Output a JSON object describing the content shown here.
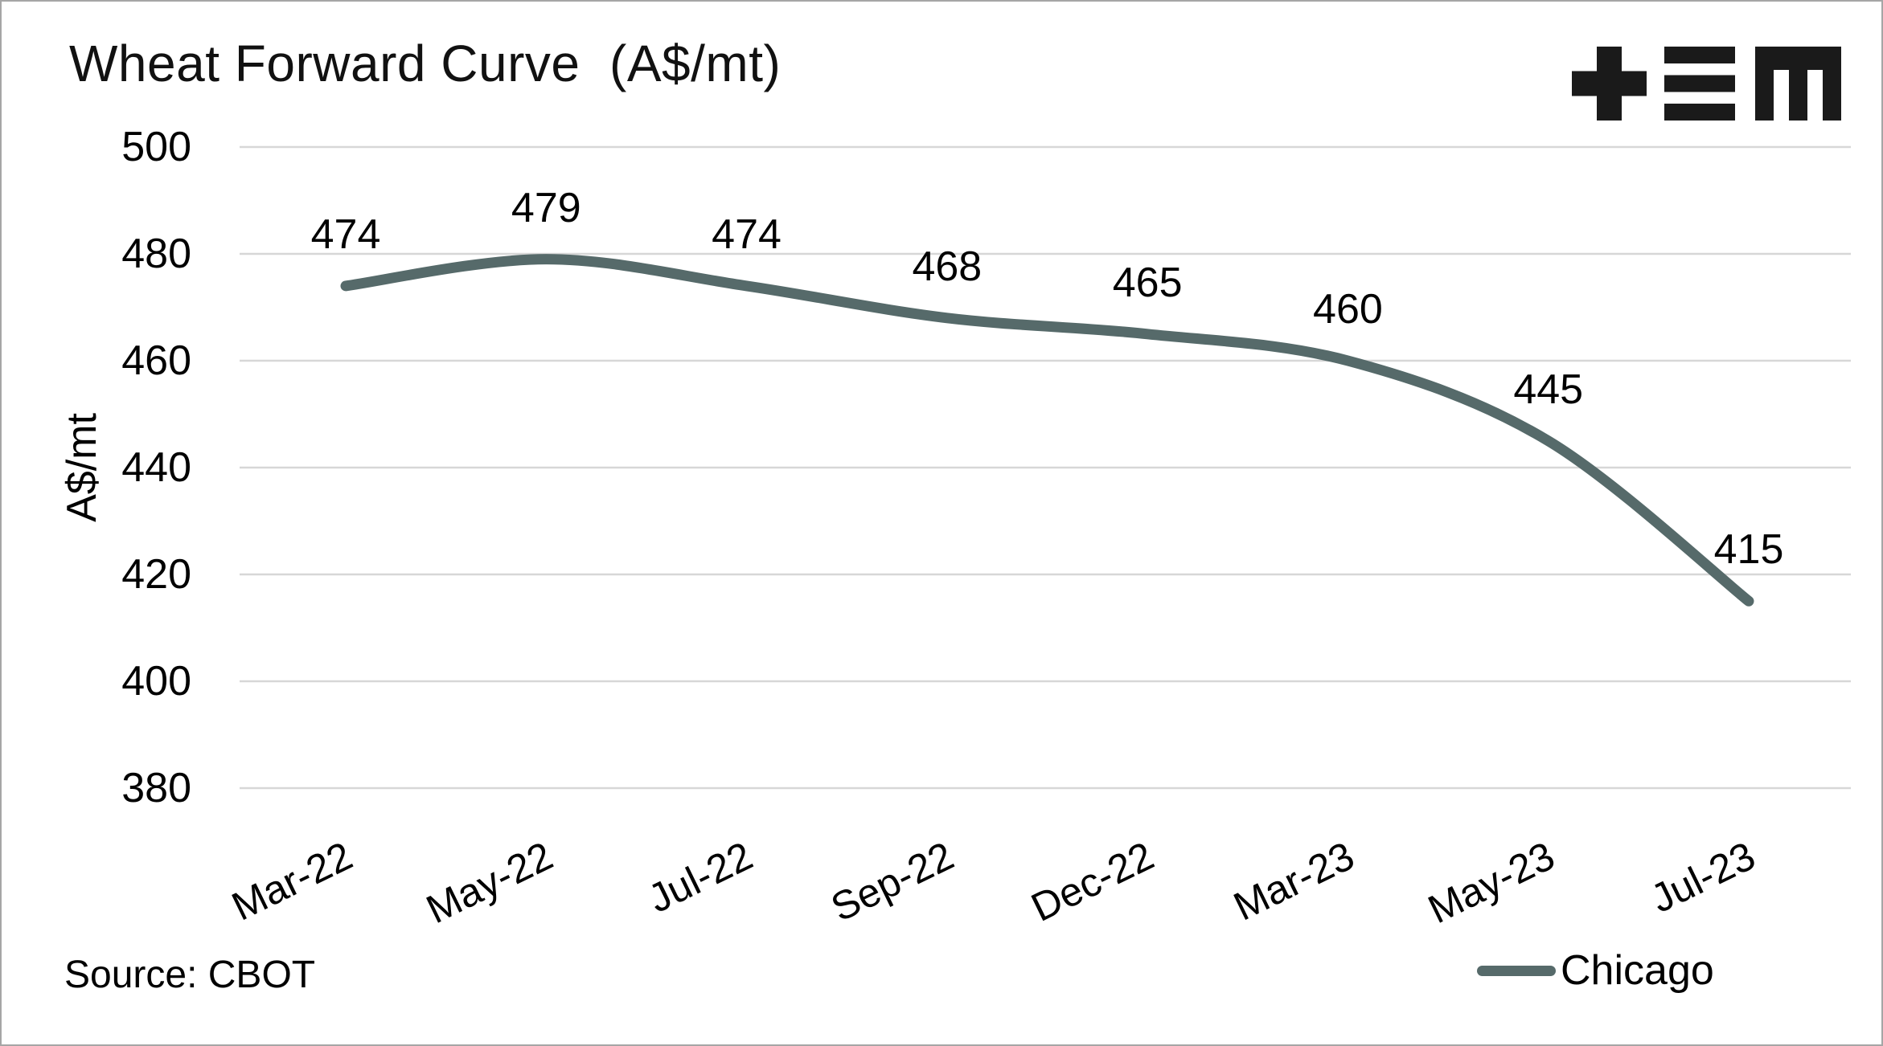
{
  "header": {
    "title": "Wheat Forward Curve  (A$/mt)"
  },
  "chart_data": {
    "type": "line",
    "title": "Wheat Forward Curve (A$/mt)",
    "categories": [
      "Mar-22",
      "May-22",
      "Jul-22",
      "Sep-22",
      "Dec-22",
      "Mar-23",
      "May-23",
      "Jul-23"
    ],
    "series": [
      {
        "name": "Chicago",
        "color": "#566a6a",
        "values": [
          474,
          479,
          474,
          468,
          465,
          460,
          445,
          415
        ]
      }
    ],
    "xlabel": "",
    "ylabel": "A$/mt",
    "ylim": [
      380,
      500
    ],
    "yticks": [
      500,
      480,
      460,
      440,
      420,
      400,
      380
    ],
    "grid": "horizontal-only",
    "smooth": true,
    "data_labels": "above",
    "legend_position": "bottom-right"
  },
  "footer": {
    "source": "Source: CBOT",
    "legend_label": "Chicago"
  },
  "logo": {
    "name": "plus-triplebar-m-logo",
    "color": "#1a1a1a"
  },
  "colors": {
    "line": "#566a6a",
    "grid": "#d7d7d7",
    "text": "#000000",
    "border": "#a6a6a6",
    "background": "#ffffff"
  }
}
